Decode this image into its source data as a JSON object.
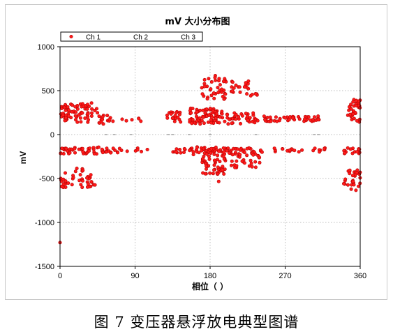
{
  "caption": "图 7  变压器悬浮放电典型图谱",
  "chart_data": {
    "type": "scatter",
    "title": "mV 大小分布图",
    "xlabel": "相位（ ）",
    "ylabel": "mV",
    "xlim": [
      0,
      360
    ],
    "ylim": [
      -1500,
      1000
    ],
    "x_ticks": [
      0,
      90,
      180,
      270,
      360
    ],
    "y_ticks": [
      -1500,
      -1000,
      -500,
      0,
      500,
      1000
    ],
    "grid": true,
    "legend_position": "top-left",
    "legend": [
      "Ch 1",
      "Ch 2",
      "Ch 3"
    ],
    "colors": {
      "ch1": "#ff1a1a",
      "ch1_edge": "#b30000",
      "small_marks": "#888888",
      "grid": "#bdbdbd"
    },
    "clusters": [
      {
        "series": "Ch 1",
        "x": [
          0,
          10
        ],
        "y": [
          140,
          340
        ],
        "n": 28
      },
      {
        "series": "Ch 1",
        "x": [
          10,
          45
        ],
        "y": [
          140,
          360
        ],
        "n": 50
      },
      {
        "series": "Ch 1",
        "x": [
          45,
          65
        ],
        "y": [
          120,
          220
        ],
        "n": 16
      },
      {
        "series": "Ch 1",
        "x": [
          70,
          105
        ],
        "y": [
          150,
          200
        ],
        "n": 6
      },
      {
        "series": "Ch 1",
        "x": [
          128,
          145
        ],
        "y": [
          140,
          260
        ],
        "n": 20
      },
      {
        "series": "Ch 1",
        "x": [
          155,
          195
        ],
        "y": [
          120,
          300
        ],
        "n": 80
      },
      {
        "series": "Ch 1",
        "x": [
          195,
          235
        ],
        "y": [
          120,
          250
        ],
        "n": 36
      },
      {
        "series": "Ch 1",
        "x": [
          235,
          265
        ],
        "y": [
          150,
          210
        ],
        "n": 18
      },
      {
        "series": "Ch 1",
        "x": [
          265,
          315
        ],
        "y": [
          150,
          210
        ],
        "n": 30
      },
      {
        "series": "Ch 1",
        "x": [
          345,
          360
        ],
        "y": [
          140,
          400
        ],
        "n": 36
      },
      {
        "series": "Ch 1",
        "x": [
          170,
          200
        ],
        "y": [
          400,
          680
        ],
        "n": 40
      },
      {
        "series": "Ch 1",
        "x": [
          205,
          240
        ],
        "y": [
          430,
          620
        ],
        "n": 24
      },
      {
        "series": "Ch 1",
        "x": [
          0,
          60
        ],
        "y": [
          -220,
          -140
        ],
        "n": 50
      },
      {
        "series": "Ch 1",
        "x": [
          60,
          110
        ],
        "y": [
          -210,
          -150
        ],
        "n": 14
      },
      {
        "series": "Ch 1",
        "x": [
          125,
          150
        ],
        "y": [
          -210,
          -160
        ],
        "n": 10
      },
      {
        "series": "Ch 1",
        "x": [
          155,
          200
        ],
        "y": [
          -230,
          -140
        ],
        "n": 50
      },
      {
        "series": "Ch 1",
        "x": [
          200,
          245
        ],
        "y": [
          -220,
          -150
        ],
        "n": 30
      },
      {
        "series": "Ch 1",
        "x": [
          245,
          320
        ],
        "y": [
          -200,
          -150
        ],
        "n": 22
      },
      {
        "series": "Ch 1",
        "x": [
          340,
          360
        ],
        "y": [
          -220,
          -150
        ],
        "n": 18
      },
      {
        "series": "Ch 1",
        "x": [
          170,
          200
        ],
        "y": [
          -450,
          -230
        ],
        "n": 50
      },
      {
        "series": "Ch 1",
        "x": [
          205,
          240
        ],
        "y": [
          -380,
          -220
        ],
        "n": 30
      },
      {
        "series": "Ch 1",
        "x": [
          0,
          10
        ],
        "y": [
          -620,
          -430
        ],
        "n": 14
      },
      {
        "series": "Ch 1",
        "x": [
          12,
          42
        ],
        "y": [
          -600,
          -440
        ],
        "n": 26
      },
      {
        "series": "Ch 1",
        "x": [
          15,
          30
        ],
        "y": [
          -430,
          -380
        ],
        "n": 6
      },
      {
        "series": "Ch 1",
        "x": [
          340,
          360
        ],
        "y": [
          -640,
          -380
        ],
        "n": 30
      },
      {
        "series": "Ch 1",
        "x": [
          186,
          192
        ],
        "y": [
          -540,
          -520
        ],
        "n": 1
      },
      {
        "series": "Ch 1",
        "x": [
          0,
          2
        ],
        "y": [
          -1230,
          -1210
        ],
        "n": 1
      }
    ],
    "zero_line_marks_x": [
      55,
      65,
      85,
      130,
      135,
      155,
      180,
      235,
      305,
      310
    ]
  }
}
